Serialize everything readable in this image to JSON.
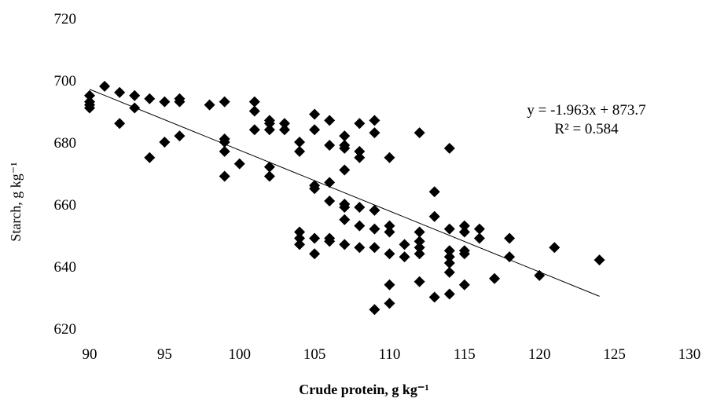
{
  "chart_data": {
    "type": "scatter",
    "xlabel": "Crude protein, g kg⁻¹",
    "ylabel": "Starch, g kg⁻¹",
    "xlim": [
      90,
      130
    ],
    "ylim": [
      620,
      720
    ],
    "x_ticks": [
      "90",
      "95",
      "100",
      "105",
      "110",
      "115",
      "120",
      "125",
      "130"
    ],
    "y_ticks": [
      "620",
      "640",
      "660",
      "680",
      "700",
      "720"
    ],
    "grid": false,
    "legend": "none",
    "marker": "diamond",
    "marker_color": "#000000",
    "trendline": {
      "type": "linear",
      "slope": -1.963,
      "intercept": 873.7,
      "x_range": [
        90,
        124
      ],
      "equation": "y = -1.963x + 873.7",
      "r_squared": "R² = 0.584"
    },
    "points": [
      [
        90,
        693
      ],
      [
        90,
        692
      ],
      [
        90,
        691
      ],
      [
        90,
        695
      ],
      [
        91,
        698
      ],
      [
        92,
        696
      ],
      [
        92,
        686
      ],
      [
        93,
        695
      ],
      [
        93,
        691
      ],
      [
        94,
        694
      ],
      [
        94,
        675
      ],
      [
        95,
        693
      ],
      [
        95,
        680
      ],
      [
        96,
        694
      ],
      [
        96,
        693
      ],
      [
        96,
        682
      ],
      [
        98,
        692
      ],
      [
        99,
        693
      ],
      [
        99,
        681
      ],
      [
        99,
        680
      ],
      [
        99,
        677
      ],
      [
        99,
        669
      ],
      [
        100,
        673
      ],
      [
        101,
        693
      ],
      [
        101,
        690
      ],
      [
        101,
        684
      ],
      [
        102,
        687
      ],
      [
        102,
        686
      ],
      [
        102,
        684
      ],
      [
        102,
        672
      ],
      [
        102,
        669
      ],
      [
        103,
        686
      ],
      [
        103,
        684
      ],
      [
        104,
        680
      ],
      [
        104,
        677
      ],
      [
        104,
        651
      ],
      [
        104,
        649
      ],
      [
        104,
        647
      ],
      [
        105,
        689
      ],
      [
        105,
        684
      ],
      [
        105,
        666
      ],
      [
        105,
        665
      ],
      [
        105,
        649
      ],
      [
        105,
        644
      ],
      [
        106,
        687
      ],
      [
        106,
        679
      ],
      [
        106,
        667
      ],
      [
        106,
        661
      ],
      [
        106,
        649
      ],
      [
        106,
        648
      ],
      [
        107,
        682
      ],
      [
        107,
        679
      ],
      [
        107,
        678
      ],
      [
        107,
        671
      ],
      [
        107,
        660
      ],
      [
        107,
        659
      ],
      [
        107,
        655
      ],
      [
        107,
        647
      ],
      [
        108,
        686
      ],
      [
        108,
        677
      ],
      [
        108,
        675
      ],
      [
        108,
        659
      ],
      [
        108,
        653
      ],
      [
        108,
        646
      ],
      [
        109,
        687
      ],
      [
        109,
        683
      ],
      [
        109,
        658
      ],
      [
        109,
        652
      ],
      [
        109,
        646
      ],
      [
        109,
        626
      ],
      [
        110,
        675
      ],
      [
        110,
        653
      ],
      [
        110,
        651
      ],
      [
        110,
        644
      ],
      [
        110,
        634
      ],
      [
        110,
        628
      ],
      [
        111,
        647
      ],
      [
        111,
        643
      ],
      [
        112,
        683
      ],
      [
        112,
        651
      ],
      [
        112,
        648
      ],
      [
        112,
        646
      ],
      [
        112,
        644
      ],
      [
        112,
        635
      ],
      [
        113,
        664
      ],
      [
        113,
        656
      ],
      [
        113,
        630
      ],
      [
        114,
        678
      ],
      [
        114,
        652
      ],
      [
        114,
        645
      ],
      [
        114,
        643
      ],
      [
        114,
        641
      ],
      [
        114,
        638
      ],
      [
        114,
        631
      ],
      [
        115,
        653
      ],
      [
        115,
        651
      ],
      [
        115,
        645
      ],
      [
        115,
        644
      ],
      [
        115,
        634
      ],
      [
        116,
        652
      ],
      [
        116,
        649
      ],
      [
        117,
        636
      ],
      [
        118,
        649
      ],
      [
        118,
        643
      ],
      [
        120,
        637
      ],
      [
        121,
        646
      ],
      [
        124,
        642
      ]
    ]
  }
}
